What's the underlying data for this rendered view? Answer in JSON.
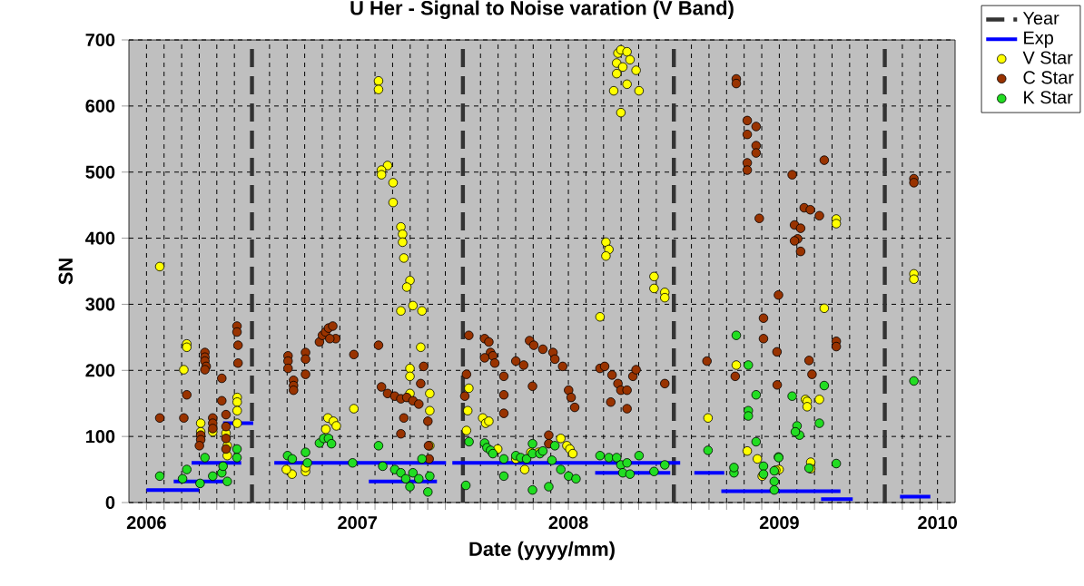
{
  "chart_data": {
    "type": "scatter",
    "title": "U Her - Signal to Noise varation (V Band)",
    "xlabel": "Date (yyyy/mm)",
    "ylabel": "SN",
    "xlim": [
      2006.4167,
      2010.3333
    ],
    "ylim": [
      0,
      700
    ],
    "yticks": [
      0,
      100,
      200,
      300,
      400,
      500,
      600,
      700
    ],
    "xticks": [
      {
        "value": 2006.5,
        "label": "2006"
      },
      {
        "value": 2006.5833,
        "label": null
      },
      {
        "value": 2006.6667,
        "label": null
      },
      {
        "value": 2006.75,
        "label": null
      },
      {
        "value": 2006.8333,
        "label": null
      },
      {
        "value": 2006.9167,
        "label": null
      },
      {
        "value": 2007.0833,
        "label": null
      },
      {
        "value": 2007.1667,
        "label": null
      },
      {
        "value": 2007.25,
        "label": null
      },
      {
        "value": 2007.3333,
        "label": null
      },
      {
        "value": 2007.4167,
        "label": null
      },
      {
        "value": 2007.5,
        "label": "2007"
      },
      {
        "value": 2007.5833,
        "label": null
      },
      {
        "value": 2007.6667,
        "label": null
      },
      {
        "value": 2007.75,
        "label": null
      },
      {
        "value": 2007.8333,
        "label": null
      },
      {
        "value": 2007.9167,
        "label": null
      },
      {
        "value": 2008.0833,
        "label": null
      },
      {
        "value": 2008.1667,
        "label": null
      },
      {
        "value": 2008.25,
        "label": null
      },
      {
        "value": 2008.3333,
        "label": null
      },
      {
        "value": 2008.4167,
        "label": null
      },
      {
        "value": 2008.5,
        "label": "2008"
      },
      {
        "value": 2008.5833,
        "label": null
      },
      {
        "value": 2008.6667,
        "label": null
      },
      {
        "value": 2008.75,
        "label": null
      },
      {
        "value": 2008.8333,
        "label": null
      },
      {
        "value": 2008.9167,
        "label": null
      },
      {
        "value": 2009.0833,
        "label": null
      },
      {
        "value": 2009.1667,
        "label": null
      },
      {
        "value": 2009.25,
        "label": null
      },
      {
        "value": 2009.3333,
        "label": null
      },
      {
        "value": 2009.4167,
        "label": null
      },
      {
        "value": 2009.5,
        "label": "2009"
      },
      {
        "value": 2009.5833,
        "label": null
      },
      {
        "value": 2009.6667,
        "label": null
      },
      {
        "value": 2009.75,
        "label": null
      },
      {
        "value": 2009.8333,
        "label": null
      },
      {
        "value": 2009.9167,
        "label": null
      },
      {
        "value": 2010.0833,
        "label": null
      },
      {
        "value": 2010.1667,
        "label": null
      },
      {
        "value": 2010.25,
        "label": "2010"
      }
    ],
    "grid": true,
    "legend": "top right",
    "ref_lines": [
      {
        "axis": "x",
        "value": 2007,
        "label": "Year",
        "color": "#333333",
        "line_style": "dashed"
      },
      {
        "axis": "x",
        "value": 2008,
        "color": "#333333",
        "line_style": "dashed"
      },
      {
        "axis": "x",
        "value": 2009,
        "color": "#333333",
        "line_style": "dashed"
      },
      {
        "axis": "x",
        "value": 2010,
        "color": "#333333",
        "line_style": "dashed"
      }
    ],
    "series": [
      {
        "name": "Exp",
        "type": "line",
        "marker": "none",
        "line_style": "solid",
        "color": "#0000ff",
        "x": [
          2006.5,
          2006.749,
          null,
          2006.629,
          2006.863,
          null,
          2006.714,
          2006.949,
          null,
          2006.863,
          2007.006,
          null,
          2007.106,
          2007.92,
          null,
          2007.554,
          2007.877,
          null,
          2007.95,
          2009.03,
          null,
          2008.627,
          2008.983,
          null,
          2009.097,
          2009.239,
          null,
          2009.225,
          2009.79,
          null,
          2009.698,
          2009.848,
          null,
          2010.072,
          2010.216
        ],
        "values": [
          19,
          19,
          null,
          32,
          32,
          null,
          60,
          60,
          null,
          120,
          120,
          null,
          60,
          60,
          null,
          32,
          32,
          null,
          60,
          60,
          null,
          45,
          45,
          null,
          45,
          45,
          null,
          17,
          17,
          null,
          5,
          5,
          null,
          9,
          9
        ]
      },
      {
        "name": "V Star",
        "marker": "circle",
        "color": "#ffff00",
        "x": [
          2006.563,
          2006.691,
          2006.691,
          2006.677,
          2006.757,
          2006.757,
          2006.814,
          2006.883,
          2006.883,
          2006.93,
          2006.93,
          2006.93,
          2006.93,
          2006.877,
          2007.6,
          2007.6,
          2007.643,
          2007.614,
          2007.614,
          2007.669,
          2007.669,
          2007.706,
          2007.714,
          2007.714,
          2007.72,
          2007.749,
          2007.734,
          2007.706,
          2007.763,
          2007.806,
          2007.8,
          2007.749,
          2007.749,
          2007.749,
          2007.483,
          2007.36,
          2007.386,
          2007.4,
          2007.35,
          2007.19,
          2007.163,
          2007.254,
          2007.254,
          2007.843,
          2007.843,
          2007.843,
          2008.735,
          2008.749,
          2008.778,
          2008.729,
          2008.758,
          2008.792,
          2008.821,
          2008.729,
          2008.778,
          2008.715,
          2008.835,
          2008.749,
          2008.678,
          2008.692,
          2008.678,
          2008.906,
          2008.906,
          2008.957,
          2008.957,
          2008.65,
          2008.028,
          2008.023,
          2008.017,
          2008.094,
          2008.108,
          2008.123,
          2008.165,
          2008.251,
          2008.293,
          2008.322,
          2008.359,
          2008.464,
          2008.493,
          2008.507,
          2008.521,
          2009.162,
          2009.296,
          2009.348,
          2009.396,
          2009.419,
          2009.499,
          2009.624,
          2009.77,
          2009.77,
          2009.713,
          2009.632,
          2009.632,
          2009.69,
          2009.649,
          2009.649,
          2009.483,
          2010.138,
          2010.138
        ],
        "values": [
          357,
          240,
          235,
          201,
          120,
          107,
          107,
          86,
          71,
          159,
          152,
          139,
          120,
          105,
          638,
          625,
          510,
          503,
          496,
          484,
          454,
          417,
          406,
          394,
          370,
          336,
          326,
          290,
          298,
          290,
          235,
          203,
          191,
          165,
          142,
          128,
          123,
          116,
          111,
          43,
          50,
          47,
          53,
          165,
          139,
          86,
          680,
          685,
          682,
          665,
          659,
          670,
          654,
          649,
          633,
          623,
          623,
          590,
          394,
          383,
          373,
          342,
          324,
          318,
          310,
          281,
          173,
          139,
          109,
          128,
          120,
          123,
          81,
          66,
          50,
          76,
          76,
          97,
          86,
          81,
          74,
          128,
          208,
          78,
          66,
          40,
          50,
          156,
          429,
          422,
          294,
          153,
          145,
          156,
          61,
          51,
          49,
          346,
          338
        ]
      },
      {
        "name": "C Star",
        "marker": "circle",
        "color": "#993300",
        "x": [
          2006.563,
          2006.677,
          2006.691,
          2006.777,
          2006.777,
          2006.777,
          2006.783,
          2006.777,
          2006.814,
          2006.814,
          2006.814,
          2006.857,
          2006.857,
          2006.757,
          2006.757,
          2006.751,
          2006.877,
          2006.877,
          2006.877,
          2006.877,
          2006.929,
          2006.929,
          2006.934,
          2006.934,
          2007.171,
          2007.171,
          2007.171,
          2007.197,
          2007.197,
          2007.197,
          2007.254,
          2007.254,
          2007.254,
          2007.32,
          2007.334,
          2007.349,
          2007.363,
          2007.383,
          2007.397,
          2007.369,
          2007.483,
          2007.6,
          2007.614,
          2007.643,
          2007.677,
          2007.706,
          2007.734,
          2007.763,
          2007.791,
          2007.72,
          2007.706,
          2007.8,
          2007.814,
          2007.834,
          2007.837,
          2007.84,
          2008.028,
          2008.017,
          2008.009,
          2008.103,
          2008.123,
          2008.131,
          2008.142,
          2008.103,
          2008.151,
          2008.194,
          2008.194,
          2008.194,
          2008.251,
          2008.288,
          2008.33,
          2008.316,
          2008.336,
          2008.379,
          2008.427,
          2008.436,
          2008.473,
          2008.501,
          2008.513,
          2008.53,
          2008.407,
          2008.407,
          2008.65,
          2008.672,
          2008.707,
          2008.735,
          2008.806,
          2008.749,
          2008.778,
          2008.821,
          2008.701,
          2008.778,
          2008.957,
          2009.157,
          2009.296,
          2009.296,
          2009.348,
          2009.39,
          2009.348,
          2009.39,
          2009.39,
          2009.348,
          2009.348,
          2009.561,
          2009.618,
          2009.647,
          2009.405,
          2009.572,
          2009.601,
          2009.587,
          2009.601,
          2009.572,
          2009.496,
          2009.425,
          2009.425,
          2009.291,
          2009.49,
          2009.489,
          2009.641,
          2009.655,
          2009.713,
          2009.69,
          2009.77,
          2009.77,
          2010.138,
          2010.138
        ],
        "values": [
          128,
          128,
          163,
          227,
          220,
          214,
          206,
          201,
          128,
          120,
          112,
          188,
          154,
          102,
          95,
          86,
          133,
          115,
          97,
          81,
          267,
          258,
          238,
          211,
          222,
          214,
          203,
          185,
          177,
          170,
          227,
          217,
          194,
          243,
          253,
          258,
          264,
          267,
          248,
          248,
          224,
          238,
          175,
          165,
          161,
          157,
          159,
          154,
          149,
          128,
          104,
          180,
          206,
          123,
          86,
          66,
          253,
          194,
          161,
          248,
          243,
          227,
          222,
          219,
          211,
          191,
          163,
          135,
          214,
          208,
          176,
          245,
          238,
          232,
          227,
          217,
          206,
          170,
          159,
          144,
          102,
          89,
          203,
          206,
          193,
          180,
          191,
          170,
          170,
          201,
          152,
          142,
          180,
          214,
          641,
          634,
          578,
          569,
          557,
          540,
          529,
          514,
          503,
          496,
          446,
          443,
          430,
          420,
          415,
          399,
          380,
          396,
          314,
          279,
          248,
          191,
          178,
          228,
          215,
          194,
          518,
          434,
          244,
          236,
          490,
          484
        ]
      },
      {
        "name": "K Star",
        "marker": "circle",
        "color": "#22dd22",
        "x": [
          2006.563,
          2006.671,
          2006.691,
          2006.754,
          2006.777,
          2006.814,
          2006.857,
          2006.863,
          2006.883,
          2006.929,
          2006.929,
          2007.169,
          2007.191,
          2007.254,
          2007.263,
          2007.32,
          2007.34,
          2007.363,
          2007.377,
          2007.477,
          2007.6,
          2007.62,
          2007.677,
          2007.706,
          2007.729,
          2007.749,
          2007.763,
          2007.806,
          2007.791,
          2007.834,
          2007.843,
          2008.014,
          2008.029,
          2008.103,
          2008.114,
          2008.131,
          2008.142,
          2008.194,
          2008.194,
          2008.251,
          2008.274,
          2008.302,
          2008.33,
          2008.33,
          2008.365,
          2008.379,
          2008.422,
          2008.436,
          2008.464,
          2008.501,
          2008.536,
          2008.33,
          2008.407,
          2008.65,
          2008.692,
          2008.729,
          2008.749,
          2008.778,
          2008.758,
          2008.792,
          2008.835,
          2008.906,
          2008.957,
          2009.162,
          2009.285,
          2009.285,
          2009.296,
          2009.353,
          2009.39,
          2009.353,
          2009.353,
          2009.39,
          2009.425,
          2009.425,
          2009.476,
          2009.476,
          2009.496,
          2009.476,
          2009.561,
          2009.584,
          2009.596,
          2009.576,
          2009.641,
          2009.713,
          2009.69,
          2009.77,
          2009.497,
          2010.138
        ],
        "values": [
          40,
          36,
          50,
          29,
          68,
          40,
          45,
          55,
          32,
          81,
          68,
          71,
          66,
          76,
          60,
          90,
          97,
          97,
          89,
          60,
          86,
          55,
          50,
          45,
          36,
          24,
          45,
          66,
          36,
          16,
          40,
          26,
          92,
          90,
          83,
          79,
          74,
          66,
          40,
          71,
          68,
          66,
          89,
          74,
          74,
          78,
          64,
          86,
          50,
          40,
          36,
          19,
          24,
          71,
          68,
          68,
          57,
          60,
          45,
          43,
          71,
          47,
          57,
          79,
          45,
          53,
          253,
          208,
          163,
          139,
          131,
          92,
          55,
          43,
          48,
          32,
          69,
          19,
          161,
          116,
          102,
          107,
          52,
          177,
          120,
          59,
          68,
          184
        ]
      }
    ]
  }
}
